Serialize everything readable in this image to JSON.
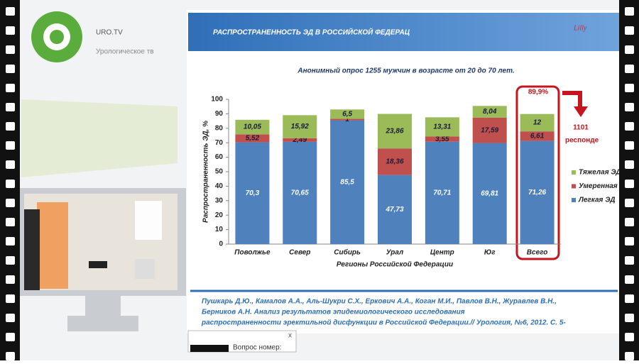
{
  "logo": {
    "name": "URO.TV",
    "tagline": "Урологическое тв"
  },
  "chart_data": {
    "type": "bar",
    "stacked": true,
    "title": "РАСПРОСТРАНЕННОСТЬ ЭД В РОССИЙСКОЙ ФЕДЕРАЦ",
    "subtitle": "Анонимный опрос 1255 мужчин в возрасте от 20 до 70 лет.",
    "y_label": "Распространенность ЭД, %",
    "x_label": "Регионы Российской Федерации",
    "categories": [
      "Поволжье",
      "Север",
      "Сибирь",
      "Урал",
      "Центр",
      "Юг",
      "Всего"
    ],
    "series": [
      {
        "name": "Легкая ЭД",
        "color": "#4f81bd",
        "values": [
          70.3,
          70.65,
          85.5,
          47.73,
          70.71,
          69.81,
          71.26
        ],
        "value_labels": [
          "70,3",
          "70,65",
          "85,5",
          "47,73",
          "70,71",
          "69,81",
          "71,26"
        ]
      },
      {
        "name": "Умеренная",
        "color": "#c0504d",
        "values": [
          5.52,
          2.49,
          1,
          18.36,
          3.55,
          17.59,
          6.61
        ],
        "value_labels": [
          "5,52",
          "2,49",
          "1",
          "18,36",
          "3,55",
          "17,59",
          "6,61"
        ]
      },
      {
        "name": "Тяжелая ЭД",
        "color": "#9bbb59",
        "values": [
          10.05,
          15.92,
          6.5,
          23.86,
          13.31,
          8.04,
          12
        ],
        "value_labels": [
          "10,05",
          "15,92",
          "6,5",
          "23,86",
          "13,31",
          "8,04",
          "12"
        ]
      }
    ],
    "ylim": [
      0,
      100
    ],
    "yticks": [
      0,
      10,
      20,
      30,
      40,
      50,
      60,
      70,
      80,
      90,
      100
    ],
    "annotations": [
      "89,9%",
      "1101",
      "респонде"
    ]
  },
  "citation": [
    "Пушкарь Д.Ю., Камалов А.А., Аль-Шукри С.Х., Еркович А.А., Коган М.И., Павлов В.Н., Журавлев В.Н.,",
    "Берников А.Н. Анализ результатов эпидемиологического исследования",
    "распространенности эректильной дисфункции в Российской Федерации.// Урология, №6, 2012. С. 5-"
  ],
  "brand": "Lilly",
  "popup": {
    "label": "Вопрос номер:",
    "close": "x"
  }
}
